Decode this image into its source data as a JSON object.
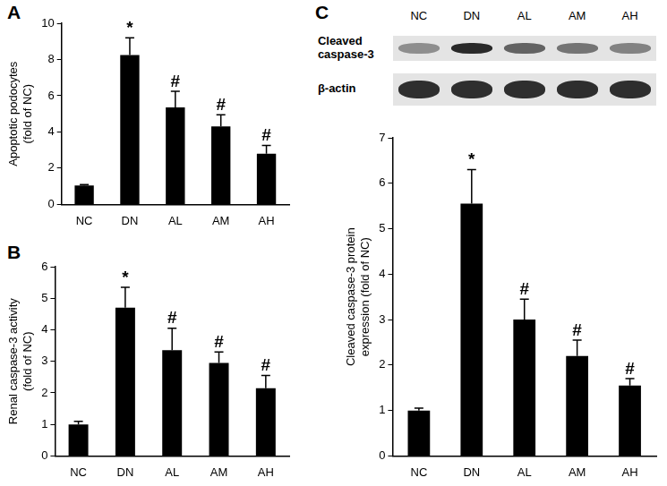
{
  "chart_data": [
    {
      "type": "bar",
      "title": "A",
      "categories": [
        "NC",
        "DN",
        "AL",
        "AM",
        "AH"
      ],
      "values": [
        1.05,
        8.25,
        5.35,
        4.3,
        2.8
      ],
      "errors": [
        0.05,
        0.95,
        0.9,
        0.65,
        0.45
      ],
      "annotations": [
        null,
        "*",
        "#",
        "#",
        "#"
      ],
      "y_label": [
        "Apoptotic podocytes",
        "(fold of NC)"
      ],
      "color": "#000000",
      "ylim": [
        0,
        10
      ],
      "yticks": [
        0,
        2,
        4,
        6,
        8,
        10
      ],
      "grid": false
    },
    {
      "type": "bar",
      "title": "B",
      "categories": [
        "NC",
        "DN",
        "AL",
        "AM",
        "AH"
      ],
      "values": [
        1.0,
        4.7,
        3.35,
        2.95,
        2.15
      ],
      "errors": [
        0.1,
        0.65,
        0.7,
        0.35,
        0.4
      ],
      "annotations": [
        null,
        "*",
        "#",
        "#",
        "#"
      ],
      "y_label": [
        "Renal caspase-3 activity",
        "(fold of NC)"
      ],
      "color": "#000000",
      "ylim": [
        0,
        6
      ],
      "yticks": [
        0,
        1,
        2,
        3,
        4,
        5,
        6
      ],
      "grid": false
    },
    {
      "type": "bar",
      "title": "C",
      "categories": [
        "NC",
        "DN",
        "AL",
        "AM",
        "AH"
      ],
      "values": [
        1.0,
        5.55,
        3.0,
        2.2,
        1.55
      ],
      "errors": [
        0.05,
        0.75,
        0.45,
        0.35,
        0.15
      ],
      "annotations": [
        null,
        "*",
        "#",
        "#",
        "#"
      ],
      "y_label": [
        "Cleaved caspase-3 protein",
        "expression (fold of NC)"
      ],
      "color": "#000000",
      "ylim": [
        0,
        7
      ],
      "yticks": [
        0,
        1,
        2,
        3,
        4,
        5,
        6,
        7
      ],
      "grid": false,
      "blot": {
        "rows": [
          "Cleaved caspase-3",
          "β-actin"
        ]
      }
    }
  ]
}
